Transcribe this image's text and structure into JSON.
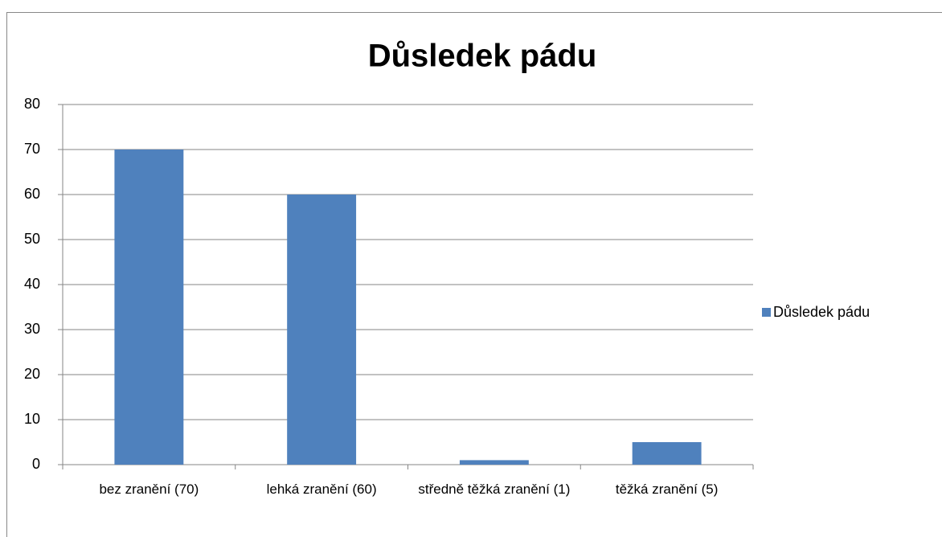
{
  "chart_data": {
    "type": "bar",
    "title": "Důsledek pádu",
    "categories": [
      "bez zranění (70)",
      "lehká zranění (60)",
      "středně těžká zranění (1)",
      "těžká zranění (5)"
    ],
    "series": [
      {
        "name": "Důsledek pádu",
        "color": "#4f81bd",
        "values": [
          70,
          60,
          1,
          5
        ]
      }
    ],
    "ylim": [
      0,
      80
    ],
    "yticks": [
      0,
      10,
      20,
      30,
      40,
      50,
      60,
      70,
      80
    ],
    "grid": true,
    "legend": "right"
  }
}
